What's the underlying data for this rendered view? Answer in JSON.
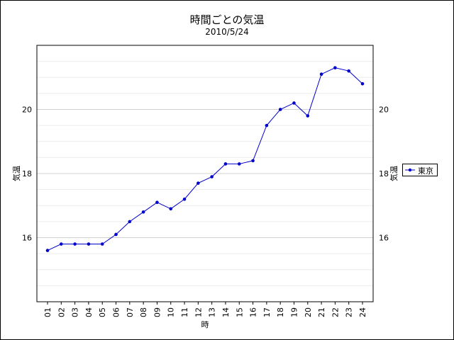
{
  "chart_data": {
    "type": "line",
    "title": "時間ごとの気温",
    "subtitle": "2010/5/24",
    "xlabel": "時",
    "ylabel": "気温",
    "ylabel_right": "気温",
    "categories": [
      "01",
      "02",
      "03",
      "04",
      "05",
      "06",
      "07",
      "08",
      "09",
      "10",
      "11",
      "12",
      "13",
      "14",
      "15",
      "16",
      "17",
      "18",
      "19",
      "20",
      "21",
      "22",
      "23",
      "24"
    ],
    "series": [
      {
        "name": "東京",
        "color": "#0000cc",
        "values": [
          15.6,
          15.8,
          15.8,
          15.8,
          15.8,
          16.1,
          16.5,
          16.8,
          17.1,
          16.9,
          17.2,
          17.7,
          17.9,
          18.3,
          18.3,
          18.4,
          19.5,
          20.0,
          20.2,
          19.8,
          21.1,
          21.3,
          21.2,
          20.8
        ]
      }
    ],
    "ylim": [
      14,
      22
    ],
    "yticks": [
      16,
      18,
      20
    ],
    "legend_position": "right",
    "grid": true
  }
}
